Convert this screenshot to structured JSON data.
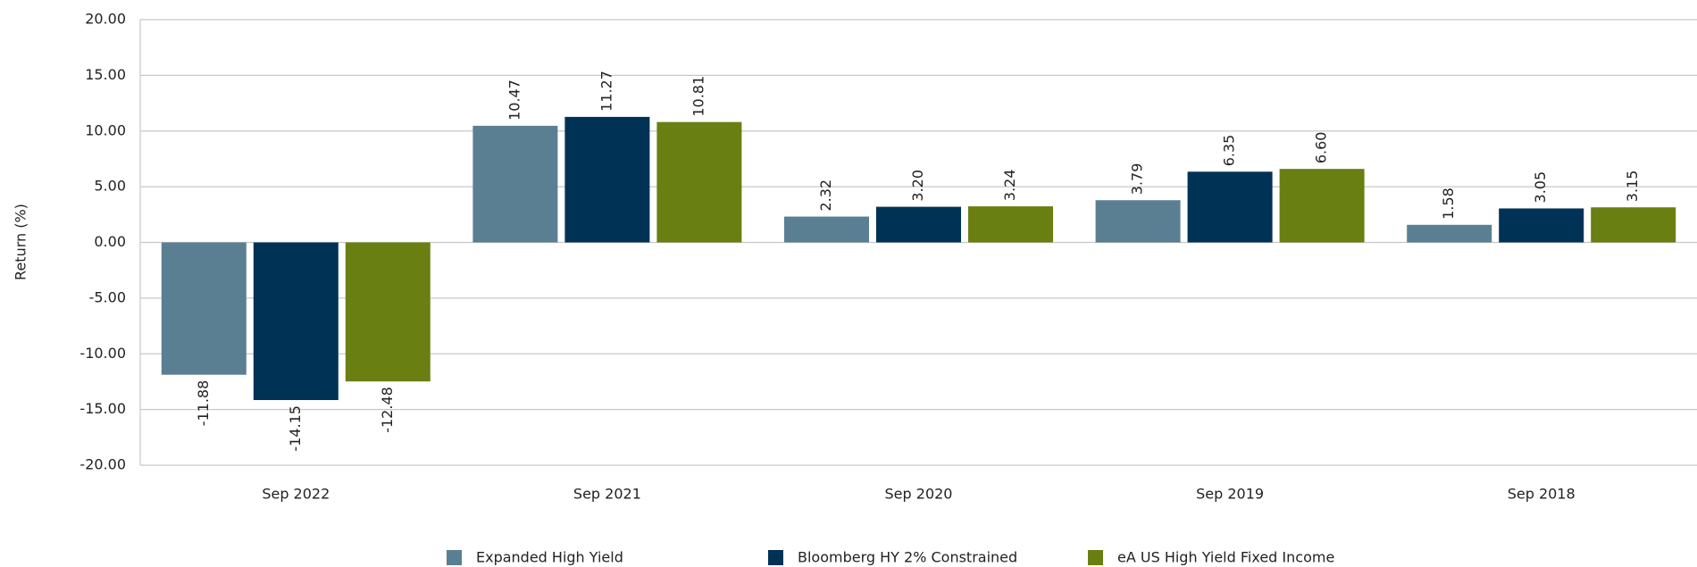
{
  "chart_data": {
    "type": "bar",
    "y_label": "Return (%)",
    "categories": [
      "Sep 2022",
      "Sep 2021",
      "Sep 2020",
      "Sep 2019",
      "Sep 2018"
    ],
    "series": [
      {
        "name": "Expanded High Yield",
        "color": "#5b7f92",
        "values": [
          -11.88,
          10.47,
          2.32,
          3.79,
          1.58
        ],
        "value_labels": [
          "-11.88",
          "10.47",
          "2.32",
          "3.79",
          "1.58"
        ]
      },
      {
        "name": "Bloomberg HY 2% Constrained",
        "color": "#003256",
        "values": [
          -14.15,
          11.27,
          3.2,
          6.35,
          3.05
        ],
        "value_labels": [
          "-14.15",
          "11.27",
          "3.20",
          "6.35",
          "3.05"
        ]
      },
      {
        "name": "eA US High Yield Fixed Income",
        "color": "#6a7f12",
        "values": [
          -12.48,
          10.81,
          3.24,
          6.6,
          3.15
        ],
        "value_labels": [
          "-12.48",
          "10.81",
          "3.24",
          "6.60",
          "3.15"
        ]
      }
    ],
    "ylim": [
      -20,
      20
    ],
    "yticks": [
      {
        "value": 20,
        "label": "20.00"
      },
      {
        "value": 15,
        "label": "15.00"
      },
      {
        "value": 10,
        "label": "10.00"
      },
      {
        "value": 5,
        "label": "5.00"
      },
      {
        "value": 0,
        "label": "0.00"
      },
      {
        "value": -5,
        "label": "-5.00"
      },
      {
        "value": -10,
        "label": "-10.00"
      },
      {
        "value": -15,
        "label": "-15.00"
      },
      {
        "value": -20,
        "label": "-20.00"
      }
    ],
    "grid": true
  }
}
